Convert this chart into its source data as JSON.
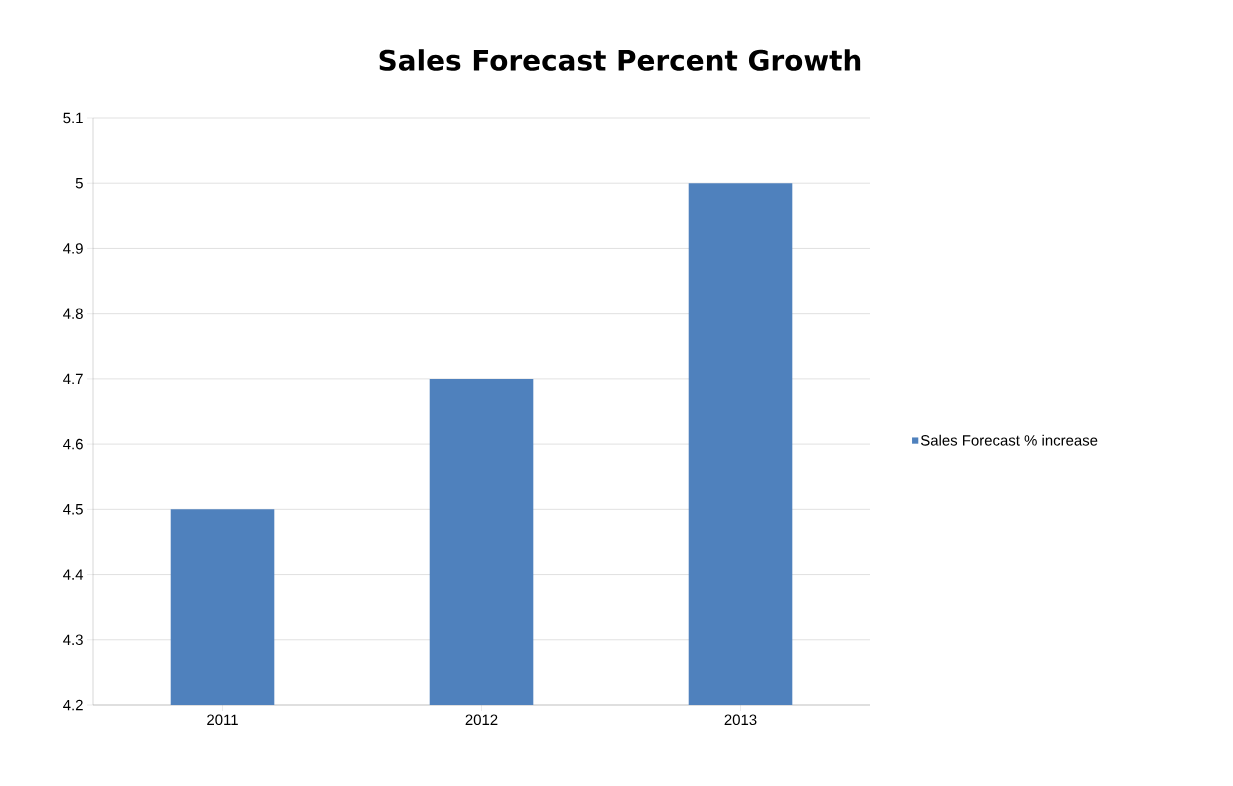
{
  "chart_data": {
    "type": "bar",
    "title": "Sales Forecast Percent Growth",
    "categories": [
      "2011",
      "2012",
      "2013"
    ],
    "series": [
      {
        "name": "Sales Forecast % increase",
        "color": "#4f81bd",
        "values": [
          4.5,
          4.7,
          5.0
        ]
      }
    ],
    "ylim": [
      4.2,
      5.1
    ],
    "yticks": [
      {
        "value": 4.2,
        "label": "4.2"
      },
      {
        "value": 4.3,
        "label": "4.3"
      },
      {
        "value": 4.4,
        "label": "4.4"
      },
      {
        "value": 4.5,
        "label": "4.5"
      },
      {
        "value": 4.6,
        "label": "4.6"
      },
      {
        "value": 4.7,
        "label": "4.7"
      },
      {
        "value": 4.8,
        "label": "4.8"
      },
      {
        "value": 4.9,
        "label": "4.9"
      },
      {
        "value": 5,
        "label": "5"
      },
      {
        "value": 5.1,
        "label": "5.1"
      }
    ],
    "grid": "y",
    "legend": "right"
  }
}
